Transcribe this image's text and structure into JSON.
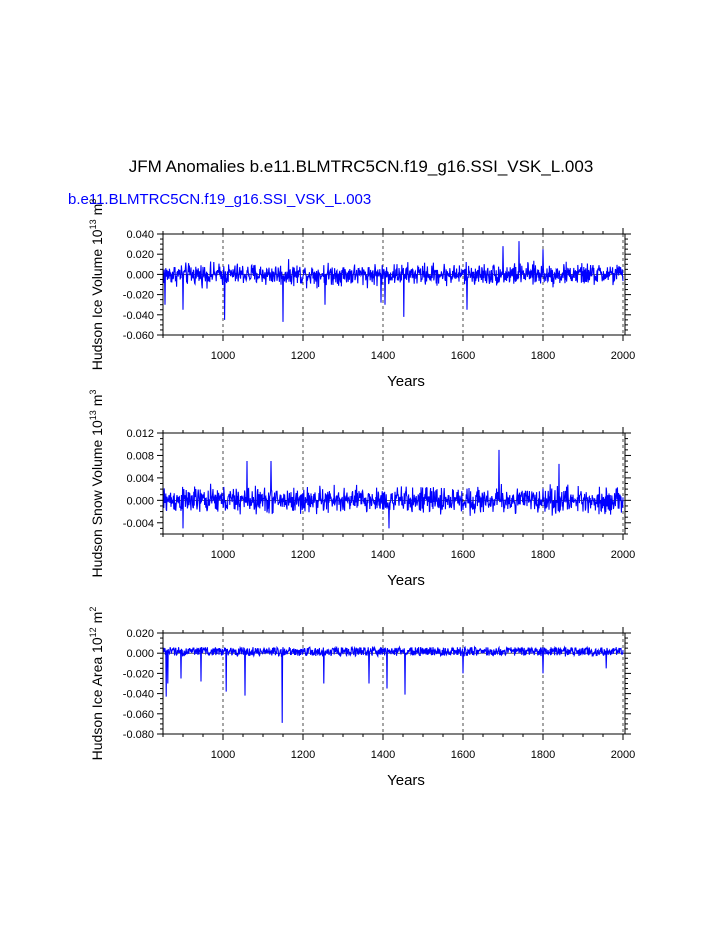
{
  "title": "JFM Anomalies b.e11.BLMTRC5CN.f19_g16.SSI_VSK_L.003",
  "subtitle": "b.e11.BLMTRC5CN.f19_g16.SSI_VSK_L.003",
  "colors": {
    "series": "#0000ff",
    "axes": "#000000",
    "grid": "#000000"
  },
  "chart_data": [
    {
      "type": "line",
      "series_name": "Hudson Ice Volume",
      "ylabel": {
        "text": "Hudson Ice Volume 10",
        "exp": "13",
        "units": "m",
        "units_exp": "3"
      },
      "xlabel": "Years",
      "xlim": [
        850,
        2005
      ],
      "ylim": [
        -0.06,
        0.04
      ],
      "xticks": [
        1000,
        1200,
        1400,
        1600,
        1800,
        2000
      ],
      "xtick_labels": [
        "1000",
        "1200",
        "1400",
        "1600",
        "1800",
        "2000"
      ],
      "yticks": [
        -0.06,
        -0.04,
        -0.02,
        0.0,
        0.02,
        0.04
      ],
      "ytick_labels": [
        "-0.060",
        "-0.040",
        "-0.020",
        "0.000",
        "0.020",
        "0.040"
      ],
      "noise_amplitude": 0.012,
      "spikes": [
        [
          855,
          -0.03
        ],
        [
          900,
          -0.035
        ],
        [
          1004,
          -0.045
        ],
        [
          1150,
          -0.047
        ],
        [
          1255,
          -0.03
        ],
        [
          1395,
          -0.028
        ],
        [
          1405,
          -0.03
        ],
        [
          1452,
          -0.042
        ],
        [
          1610,
          -0.035
        ],
        [
          1700,
          0.028
        ],
        [
          1740,
          0.033
        ],
        [
          1800,
          0.025
        ]
      ]
    },
    {
      "type": "line",
      "series_name": "Hudson Snow Volume",
      "ylabel": {
        "text": "Hudson Snow Volume 10",
        "exp": "13",
        "units": "m",
        "units_exp": "3"
      },
      "xlabel": "Years",
      "xlim": [
        850,
        2005
      ],
      "ylim": [
        -0.006,
        0.012
      ],
      "xticks": [
        1000,
        1200,
        1400,
        1600,
        1800,
        2000
      ],
      "xtick_labels": [
        "1000",
        "1200",
        "1400",
        "1600",
        "1800",
        "2000"
      ],
      "yticks": [
        -0.004,
        0.0,
        0.004,
        0.008,
        0.012
      ],
      "ytick_labels": [
        "-0.004",
        "0.000",
        "0.004",
        "0.008",
        "0.012"
      ],
      "noise_amplitude": 0.0026,
      "spikes": [
        [
          1690,
          0.009
        ],
        [
          1840,
          0.0065
        ],
        [
          1120,
          0.007
        ],
        [
          1060,
          0.007
        ],
        [
          900,
          -0.005
        ],
        [
          1415,
          -0.005
        ]
      ]
    },
    {
      "type": "line",
      "series_name": "Hudson Ice Area",
      "ylabel": {
        "text": "Hudson Ice Area 10",
        "exp": "12",
        "units": "m",
        "units_exp": "2"
      },
      "xlabel": "Years",
      "xlim": [
        850,
        2005
      ],
      "ylim": [
        -0.08,
        0.02
      ],
      "xticks": [
        1000,
        1200,
        1400,
        1600,
        1800,
        2000
      ],
      "xtick_labels": [
        "1000",
        "1200",
        "1400",
        "1600",
        "1800",
        "2000"
      ],
      "yticks": [
        -0.08,
        -0.06,
        -0.04,
        -0.02,
        0.0,
        0.02
      ],
      "ytick_labels": [
        "-0.080",
        "-0.060",
        "-0.040",
        "-0.020",
        "0.000",
        "0.020"
      ],
      "noise_amplitude": 0.003,
      "spikes": [
        [
          858,
          -0.043
        ],
        [
          862,
          -0.03
        ],
        [
          895,
          -0.025
        ],
        [
          945,
          -0.028
        ],
        [
          1008,
          -0.038
        ],
        [
          1055,
          -0.042
        ],
        [
          1148,
          -0.069
        ],
        [
          1252,
          -0.03
        ],
        [
          1365,
          -0.03
        ],
        [
          1410,
          -0.035
        ],
        [
          1455,
          -0.041
        ],
        [
          1600,
          -0.02
        ],
        [
          1800,
          -0.02
        ],
        [
          1958,
          -0.015
        ]
      ]
    }
  ]
}
